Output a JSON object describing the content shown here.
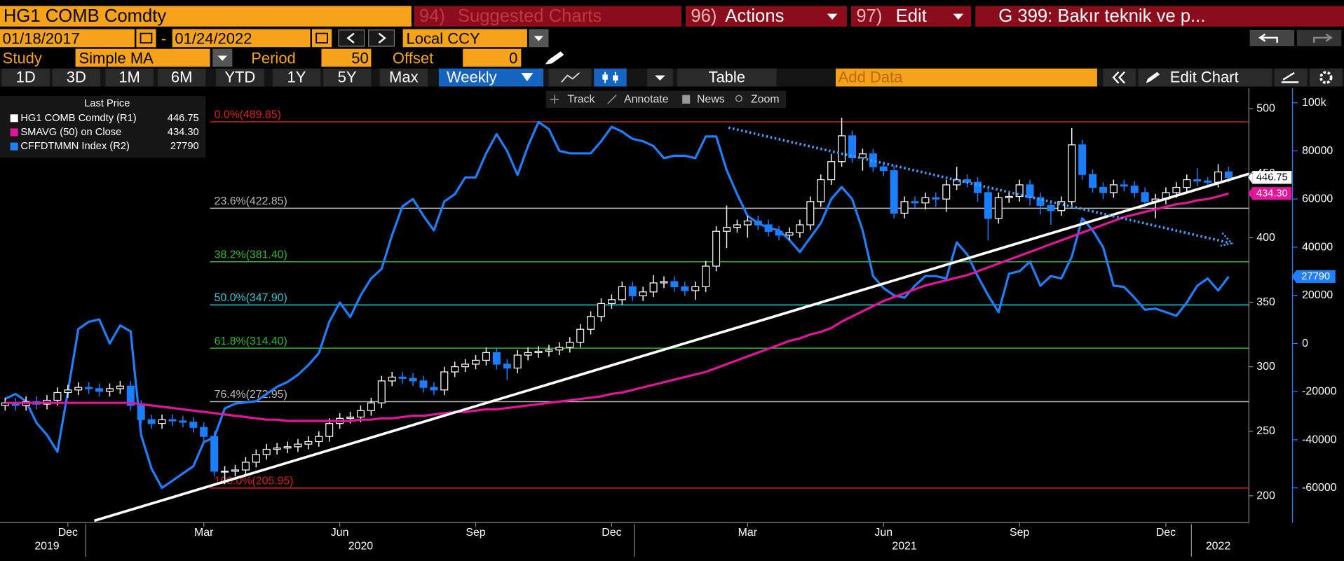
{
  "toolbar": {
    "security": "HG1 COMB Comdty",
    "menus": [
      {
        "num": "94)",
        "label": "Suggested Charts"
      },
      {
        "num": "96)",
        "label": "Actions"
      },
      {
        "num": "97)",
        "label": "Edit"
      }
    ],
    "page_title": "G 399: Bakır teknik ve p...",
    "start_date": "01/18/2017",
    "date_sep": "-",
    "end_date": "01/24/2022",
    "currency": "Local CCY",
    "study_label": "Study",
    "study": "Simple MA",
    "period_label": "Period",
    "period": 50,
    "offset_label": "Offset",
    "offset": 0,
    "ranges": [
      "1D",
      "3D",
      "1M",
      "6M",
      "YTD",
      "1Y",
      "5Y",
      "Max"
    ],
    "frequency": "Weekly",
    "table": "Table",
    "add_data": "Add Data",
    "edit_chart": "Edit Chart",
    "chart_tools": [
      "Track",
      "Annotate",
      "News",
      "Zoom"
    ]
  },
  "chart_data": {
    "type": "candlestick",
    "legend_title": "Last Price",
    "categories": [
      null,
      null,
      null,
      null,
      null,
      null,
      "Dec",
      null,
      null,
      null,
      null,
      null,
      null,
      null,
      null,
      null,
      null,
      null,
      null,
      "Mar",
      null,
      null,
      null,
      null,
      null,
      null,
      null,
      null,
      null,
      null,
      null,
      null,
      "Jun",
      null,
      null,
      null,
      null,
      null,
      null,
      null,
      null,
      null,
      null,
      null,
      null,
      "Sep",
      null,
      null,
      null,
      null,
      null,
      null,
      null,
      null,
      null,
      null,
      null,
      null,
      "Dec",
      null,
      null,
      null,
      null,
      null,
      null,
      null,
      null,
      null,
      null,
      null,
      null,
      "Mar",
      null,
      null,
      null,
      null,
      null,
      null,
      null,
      null,
      null,
      null,
      null,
      null,
      "Jun",
      null,
      null,
      null,
      null,
      null,
      null,
      null,
      null,
      null,
      null,
      null,
      null,
      "Sep",
      null,
      null,
      null,
      null,
      null,
      null,
      null,
      null,
      null,
      null,
      null,
      null,
      null,
      "Dec",
      null,
      null,
      null,
      null,
      null,
      null
    ],
    "years": [
      null,
      null,
      null,
      null,
      "2019",
      null,
      null,
      null,
      null,
      null,
      null,
      null,
      null,
      null,
      null,
      null,
      null,
      null,
      null,
      null,
      null,
      null,
      null,
      null,
      null,
      null,
      null,
      null,
      null,
      null,
      null,
      null,
      null,
      null,
      "2020",
      null,
      null,
      null,
      null,
      null,
      null,
      null,
      null,
      null,
      null,
      null,
      null,
      null,
      null,
      null,
      null,
      null,
      null,
      null,
      null,
      null,
      null,
      null,
      null,
      null,
      null,
      null,
      null,
      null,
      null,
      null,
      null,
      null,
      null,
      null,
      null,
      null,
      null,
      null,
      null,
      null,
      null,
      null,
      null,
      null,
      null,
      null,
      null,
      null,
      null,
      null,
      "2021",
      null,
      null,
      null,
      null,
      null,
      null,
      null,
      null,
      null,
      null,
      null,
      null,
      null,
      null,
      null,
      null,
      null,
      null,
      null,
      null,
      null,
      null,
      null,
      null,
      null,
      null,
      null,
      null,
      null,
      "2022",
      null
    ],
    "price": {
      "name": "HG1 COMB Comdty  (R1)",
      "color": "#ffffff",
      "down_color": "#1a7fff",
      "last": 446.75,
      "open": [
        270,
        272,
        270,
        273,
        271,
        274,
        280,
        282,
        284,
        283,
        281,
        283,
        285,
        270,
        259,
        256,
        259,
        258,
        257,
        253,
        246,
        219,
        219,
        220,
        226,
        232,
        236,
        237,
        238,
        240,
        242,
        246,
        256,
        260,
        261,
        266,
        272,
        289,
        292,
        291,
        289,
        284,
        282,
        296,
        300,
        302,
        305,
        311,
        302,
        299,
        309,
        311,
        312,
        313,
        315,
        319,
        329,
        339,
        349,
        352,
        362,
        355,
        358,
        365,
        366,
        362,
        359,
        362,
        378,
        405,
        408,
        410,
        413,
        410,
        405,
        402,
        404,
        410,
        428,
        445,
        459,
        479,
        462,
        465,
        455,
        452,
        419,
        428,
        427,
        431,
        430,
        441,
        445,
        443,
        435,
        415,
        431,
        432,
        441,
        431,
        425,
        421,
        428,
        472,
        449,
        439,
        435,
        441,
        440,
        435,
        428,
        430,
        435,
        439,
        445,
        444,
        443,
        451
      ],
      "high": [
        276,
        276,
        277,
        277,
        278,
        284,
        286,
        288,
        288,
        287,
        287,
        289,
        289,
        274,
        263,
        263,
        263,
        262,
        261,
        257,
        250,
        223,
        224,
        230,
        236,
        240,
        241,
        242,
        244,
        246,
        250,
        260,
        264,
        265,
        270,
        276,
        293,
        296,
        296,
        295,
        293,
        288,
        300,
        304,
        306,
        309,
        315,
        315,
        306,
        313,
        315,
        316,
        317,
        319,
        323,
        333,
        343,
        353,
        356,
        366,
        366,
        362,
        371,
        370,
        370,
        366,
        366,
        382,
        409,
        425,
        414,
        417,
        417,
        414,
        409,
        408,
        414,
        432,
        449,
        465,
        493,
        483,
        469,
        469,
        459,
        456,
        432,
        432,
        435,
        435,
        445,
        455,
        449,
        447,
        439,
        435,
        436,
        445,
        445,
        435,
        429,
        432,
        485,
        476,
        453,
        443,
        445,
        445,
        444,
        439,
        434,
        439,
        443,
        449,
        454,
        447,
        457,
        455
      ],
      "low": [
        266,
        266,
        266,
        267,
        267,
        270,
        276,
        278,
        279,
        277,
        277,
        279,
        266,
        255,
        252,
        252,
        254,
        253,
        249,
        242,
        215,
        209,
        215,
        216,
        222,
        228,
        232,
        233,
        234,
        236,
        238,
        242,
        252,
        256,
        257,
        262,
        268,
        285,
        287,
        285,
        280,
        278,
        278,
        292,
        296,
        298,
        301,
        298,
        290,
        295,
        305,
        307,
        308,
        309,
        311,
        315,
        325,
        335,
        345,
        348,
        351,
        351,
        354,
        361,
        358,
        355,
        352,
        358,
        374,
        392,
        404,
        400,
        406,
        401,
        398,
        398,
        400,
        406,
        424,
        441,
        455,
        458,
        452,
        451,
        448,
        415,
        415,
        423,
        422,
        424,
        420,
        437,
        439,
        428,
        398,
        411,
        427,
        428,
        425,
        418,
        410,
        417,
        424,
        445,
        435,
        430,
        431,
        436,
        431,
        424,
        415,
        426,
        431,
        435,
        440,
        439,
        439,
        443
      ],
      "close": [
        272,
        270,
        273,
        271,
        274,
        280,
        282,
        284,
        283,
        281,
        283,
        285,
        270,
        259,
        256,
        259,
        258,
        257,
        253,
        246,
        219,
        219,
        220,
        226,
        232,
        236,
        237,
        238,
        240,
        242,
        246,
        256,
        260,
        261,
        266,
        272,
        289,
        292,
        291,
        289,
        284,
        282,
        296,
        300,
        302,
        305,
        311,
        302,
        299,
        309,
        311,
        312,
        313,
        315,
        319,
        329,
        339,
        349,
        352,
        362,
        355,
        358,
        365,
        366,
        362,
        359,
        362,
        378,
        405,
        408,
        410,
        413,
        410,
        405,
        402,
        404,
        410,
        428,
        445,
        459,
        479,
        462,
        465,
        455,
        452,
        419,
        428,
        427,
        431,
        430,
        441,
        445,
        443,
        435,
        415,
        431,
        432,
        441,
        431,
        425,
        421,
        428,
        472,
        449,
        439,
        435,
        441,
        440,
        435,
        428,
        430,
        435,
        439,
        445,
        444,
        443,
        451,
        446.75
      ]
    },
    "series": [
      {
        "name": "SMAVG (50)  on Close",
        "color": "#e3159c",
        "last": 434.3,
        "last_label": "434.30",
        "values": [
          272,
          272,
          272,
          272,
          272,
          272,
          272,
          272,
          272,
          272,
          272,
          272,
          272,
          271,
          270,
          269,
          268,
          267,
          266,
          265,
          264,
          263,
          262,
          261,
          260,
          259,
          259,
          258,
          258,
          258,
          258,
          258,
          258,
          258,
          259,
          259,
          260,
          260,
          261,
          262,
          262,
          263,
          264,
          265,
          265,
          266,
          267,
          267,
          268,
          269,
          270,
          271,
          272,
          273,
          274,
          275,
          276,
          277,
          279,
          280,
          282,
          284,
          286,
          288,
          290,
          292,
          294,
          296,
          299,
          302,
          305,
          308,
          311,
          314,
          317,
          320,
          322,
          325,
          327,
          330,
          335,
          339,
          343,
          347,
          351,
          354,
          357,
          360,
          363,
          365,
          367,
          369,
          371,
          374,
          377,
          380,
          383,
          386,
          389,
          392,
          395,
          398,
          401,
          404,
          407,
          410,
          413,
          416,
          418,
          420,
          422,
          424,
          426,
          427,
          429,
          430,
          432,
          434.3
        ]
      },
      {
        "name": "CFFDTMMN Index  (R2)",
        "color": "#1f7fff",
        "axis": "y2",
        "last": 27790,
        "values": [
          -23000,
          -21000,
          -24000,
          -33000,
          -38000,
          -45000,
          -20000,
          6000,
          9000,
          10000,
          0,
          7500,
          5000,
          -38000,
          -52000,
          -60000,
          -57000,
          -54000,
          -51000,
          -41000,
          -39000,
          -27000,
          -25000,
          -24500,
          -24000,
          -21000,
          -18000,
          -16000,
          -13000,
          -9000,
          -4000,
          9000,
          17000,
          11000,
          20000,
          27000,
          31000,
          45000,
          57000,
          60000,
          53000,
          47000,
          59000,
          62000,
          69000,
          69000,
          79000,
          87000,
          80000,
          70000,
          82000,
          92000,
          89000,
          80000,
          79000,
          79000,
          79000,
          84000,
          90000,
          88000,
          85000,
          84000,
          82000,
          77000,
          78000,
          78000,
          77000,
          86000,
          86000,
          72000,
          62000,
          53000,
          50000,
          48000,
          47000,
          43000,
          38000,
          44000,
          50000,
          60000,
          65000,
          60000,
          47000,
          28000,
          23000,
          20000,
          19000,
          24000,
          28000,
          28000,
          27000,
          42000,
          37000,
          28000,
          20000,
          13000,
          29000,
          30000,
          34000,
          24000,
          28000,
          27000,
          36000,
          52000,
          47000,
          40000,
          24000,
          23500,
          19000,
          14000,
          14500,
          13000,
          11500,
          17000,
          24000,
          27000,
          22000,
          27790
        ]
      }
    ],
    "fib_levels": [
      {
        "label": "0.0%(489.85)",
        "value": 489.85,
        "color": "#d42020"
      },
      {
        "label": "23.6%(422.85)",
        "value": 422.85,
        "color": "#b8b8b8"
      },
      {
        "label": "38.2%(381.40)",
        "value": 381.4,
        "color": "#2fb82f"
      },
      {
        "label": "50.0%(347.90)",
        "value": 347.9,
        "color": "#35c6d6"
      },
      {
        "label": "61.8%(314.40)",
        "value": 314.4,
        "color": "#2fb82f"
      },
      {
        "label": "76.4%(272.95)",
        "value": 272.95,
        "color": "#b8b8b8"
      },
      {
        "label": "100.0%(205.95)",
        "value": 205.95,
        "color": "#d42020"
      }
    ],
    "ylim": [
      179.3,
      515.9
    ],
    "yticks": [
      200,
      250,
      300,
      350,
      400,
      450,
      500
    ],
    "y2lim": [
      -74370,
      106050
    ],
    "y2ticks": [
      {
        "value": 100000,
        "label": "100k"
      },
      80000,
      60000,
      40000,
      20000,
      0,
      -20000,
      -40000,
      -60000
    ]
  }
}
